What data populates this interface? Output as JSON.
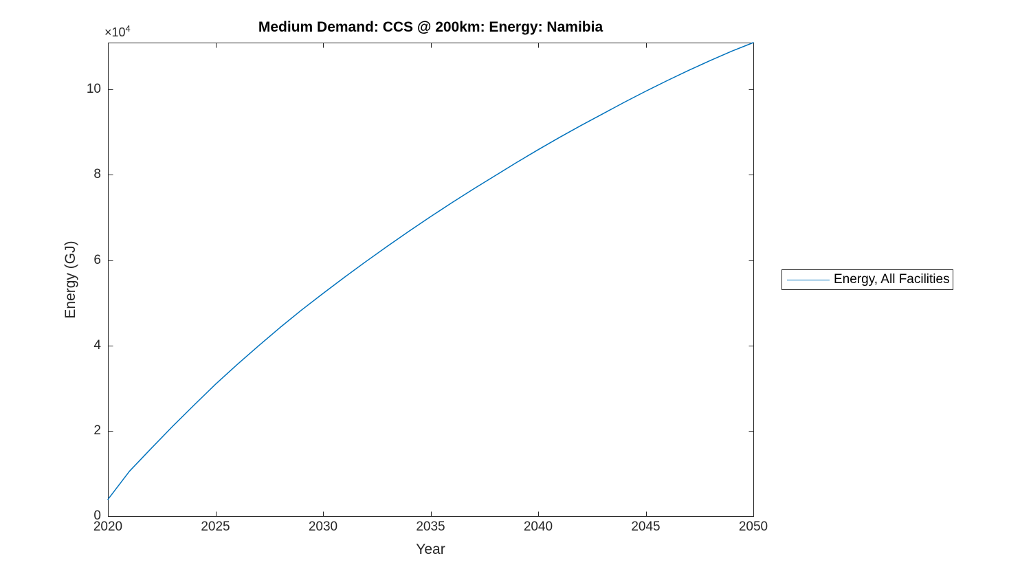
{
  "figure": {
    "background": "#ffffff",
    "y_offset_label": {
      "base": "×10",
      "exponent": "4"
    }
  },
  "chart_data": {
    "type": "line",
    "title": "Medium Demand: CCS @ 200km: Energy: Namibia",
    "xlabel": "Year",
    "ylabel": "Energy (GJ)",
    "values_unit": "GJ × 10^4",
    "y_unit_scale": 10000,
    "xlim": [
      2020,
      2050
    ],
    "ylim": [
      0,
      11.1
    ],
    "x_ticks": [
      2020,
      2025,
      2030,
      2035,
      2040,
      2045,
      2050
    ],
    "y_ticks": [
      0,
      2,
      4,
      6,
      8,
      10
    ],
    "grid": false,
    "legend_position": "right-outside",
    "colors": {
      "axis": "#262626",
      "title": "#000000"
    },
    "x": [
      2020,
      2021,
      2022,
      2023,
      2024,
      2025,
      2026,
      2027,
      2028,
      2029,
      2030,
      2031,
      2032,
      2033,
      2034,
      2035,
      2036,
      2037,
      2038,
      2039,
      2040,
      2041,
      2042,
      2043,
      2044,
      2045,
      2046,
      2047,
      2048,
      2049,
      2050
    ],
    "series": [
      {
        "name": "Energy, All Facilities",
        "color": "#0072BD",
        "values": [
          0.39,
          1.05,
          1.58,
          2.1,
          2.6,
          3.09,
          3.55,
          3.99,
          4.42,
          4.83,
          5.22,
          5.6,
          5.97,
          6.33,
          6.68,
          7.02,
          7.35,
          7.67,
          7.98,
          8.29,
          8.59,
          8.88,
          9.16,
          9.43,
          9.7,
          9.96,
          10.21,
          10.45,
          10.68,
          10.9,
          11.1
        ]
      }
    ]
  }
}
